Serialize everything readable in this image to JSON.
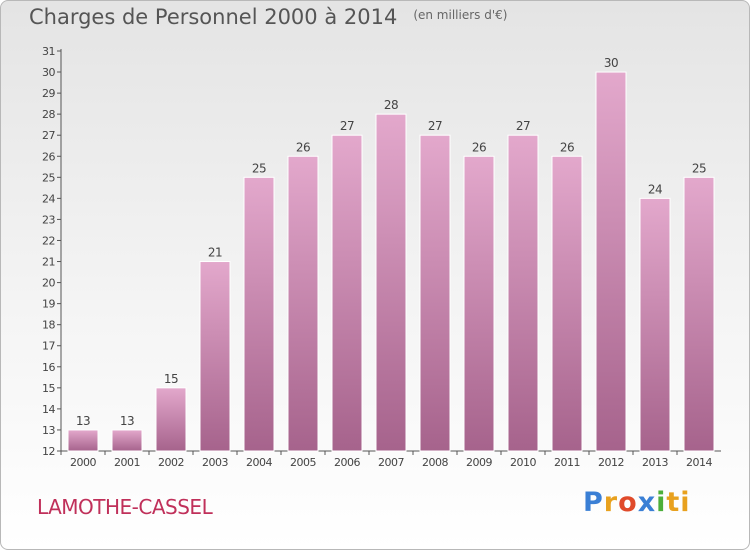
{
  "chart_data": {
    "type": "bar",
    "title": "Charges de Personnel 2000 à 2014",
    "subtitle": "(en milliers d'€)",
    "categories": [
      "2000",
      "2001",
      "2002",
      "2003",
      "2004",
      "2005",
      "2006",
      "2007",
      "2008",
      "2009",
      "2010",
      "2011",
      "2012",
      "2013",
      "2014"
    ],
    "values": [
      13,
      13,
      15,
      21,
      25,
      26,
      27,
      28,
      27,
      26,
      27,
      26,
      30,
      24,
      25
    ],
    "ylim": [
      12,
      31
    ],
    "yticks": [
      12,
      13,
      14,
      15,
      16,
      17,
      18,
      19,
      20,
      21,
      22,
      23,
      24,
      25,
      26,
      27,
      28,
      29,
      30,
      31
    ],
    "grid": false,
    "bar_color_top": "#e3a8cc",
    "bar_color_bottom": "#a6638c"
  },
  "footer": {
    "commune": "LAMOTHE-CASSEL",
    "logo_letters": [
      "P",
      "r",
      "o",
      "x",
      "i",
      "ti"
    ]
  }
}
